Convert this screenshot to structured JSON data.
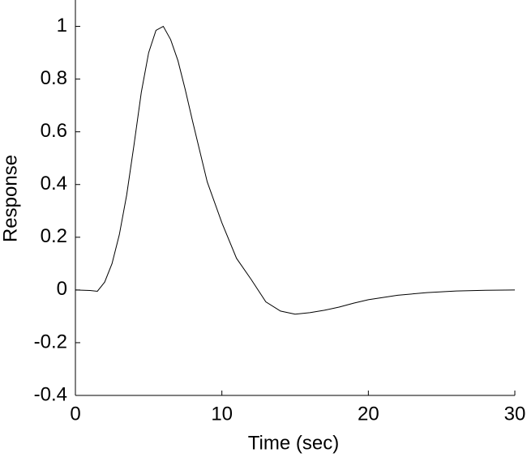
{
  "chart_data": {
    "type": "line",
    "x_label": "Time (sec)",
    "y_label": "Response",
    "x": [
      0,
      1,
      1.5,
      2,
      2.5,
      3,
      3.5,
      4,
      4.5,
      5,
      5.5,
      6,
      6.5,
      7,
      7.5,
      8,
      9,
      10,
      11,
      12,
      13,
      14,
      15,
      16,
      17,
      18,
      19,
      20,
      22,
      24,
      26,
      28,
      30
    ],
    "series": [
      {
        "color": "#000000",
        "values": [
          0,
          -0.002,
          -0.005,
          0.03,
          0.1,
          0.21,
          0.36,
          0.55,
          0.75,
          0.9,
          0.985,
          1.0,
          0.95,
          0.87,
          0.76,
          0.64,
          0.41,
          0.255,
          0.12,
          0.04,
          -0.045,
          -0.08,
          -0.092,
          -0.086,
          -0.077,
          -0.065,
          -0.05,
          -0.037,
          -0.02,
          -0.01,
          -0.004,
          -0.001,
          0
        ]
      }
    ],
    "xlim": [
      0,
      30
    ],
    "xticks": [
      0,
      10,
      20,
      30
    ],
    "ylim": [
      -0.4,
      1.1
    ],
    "yticks": [
      -0.4,
      -0.2,
      0,
      0.2,
      0.4,
      0.6,
      0.8,
      1
    ]
  }
}
